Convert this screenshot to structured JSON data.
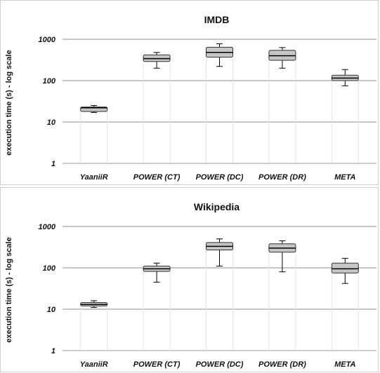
{
  "chart_data": [
    {
      "type": "box",
      "title": "IMDB",
      "ylabel": "execution time (s) - log scale",
      "xlabel": "",
      "yscale": "log",
      "ylim": [
        1,
        1000
      ],
      "yticks": [
        "1",
        "10",
        "100",
        "1000"
      ],
      "ytick_values": [
        1,
        10,
        100,
        1000
      ],
      "grid": true,
      "categories": [
        "YaaniiR",
        "POWER (CT)",
        "POWER (DC)",
        "POWER (DR)",
        "META"
      ],
      "boxes": [
        {
          "min": 17,
          "q1": 18,
          "median": 22,
          "q3": 23,
          "max": 25
        },
        {
          "min": 200,
          "q1": 290,
          "median": 340,
          "q3": 420,
          "max": 480
        },
        {
          "min": 220,
          "q1": 370,
          "median": 480,
          "q3": 640,
          "max": 780
        },
        {
          "min": 200,
          "q1": 310,
          "median": 400,
          "q3": 540,
          "max": 630
        },
        {
          "min": 75,
          "q1": 100,
          "median": 115,
          "q3": 135,
          "max": 185
        }
      ]
    },
    {
      "type": "box",
      "title": "Wikipedia",
      "ylabel": "execution time (s) - log scale",
      "xlabel": "",
      "yscale": "log",
      "ylim": [
        1,
        1000
      ],
      "yticks": [
        "1",
        "10",
        "100",
        "1000"
      ],
      "ytick_values": [
        1,
        10,
        100,
        1000
      ],
      "grid": true,
      "categories": [
        "YaaniiR",
        "POWER (CT)",
        "POWER (DC)",
        "POWER (DR)",
        "META"
      ],
      "boxes": [
        {
          "min": 11,
          "q1": 12,
          "median": 13,
          "q3": 14.5,
          "max": 16
        },
        {
          "min": 45,
          "q1": 82,
          "median": 95,
          "q3": 110,
          "max": 130
        },
        {
          "min": 110,
          "q1": 270,
          "median": 330,
          "q3": 410,
          "max": 500
        },
        {
          "min": 80,
          "q1": 240,
          "median": 300,
          "q3": 380,
          "max": 450
        },
        {
          "min": 42,
          "q1": 75,
          "median": 95,
          "q3": 130,
          "max": 170
        }
      ]
    }
  ]
}
